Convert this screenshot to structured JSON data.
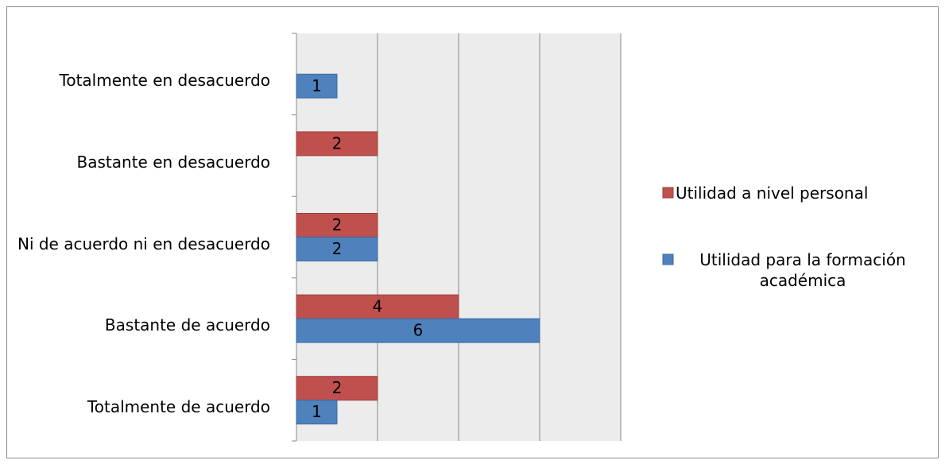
{
  "chart_data": {
    "type": "bar",
    "orientation": "horizontal",
    "categories": [
      "Totalmente en desacuerdo",
      "Bastante en desacuerdo",
      "Ni de acuerdo ni en desacuerdo",
      "Bastante de acuerdo",
      "Totalmente de acuerdo"
    ],
    "series": [
      {
        "name": "Utilidad a nivel personal",
        "color": "#c0504d",
        "values": [
          null,
          2,
          2,
          4,
          2
        ]
      },
      {
        "name": "Utilidad para la formación académica",
        "color": "#4f81bd",
        "values": [
          1,
          null,
          2,
          6,
          1
        ]
      }
    ],
    "xlim": [
      0,
      8
    ],
    "xticks": [
      0,
      2,
      4,
      6,
      8
    ],
    "grid": true,
    "legend": "right"
  }
}
